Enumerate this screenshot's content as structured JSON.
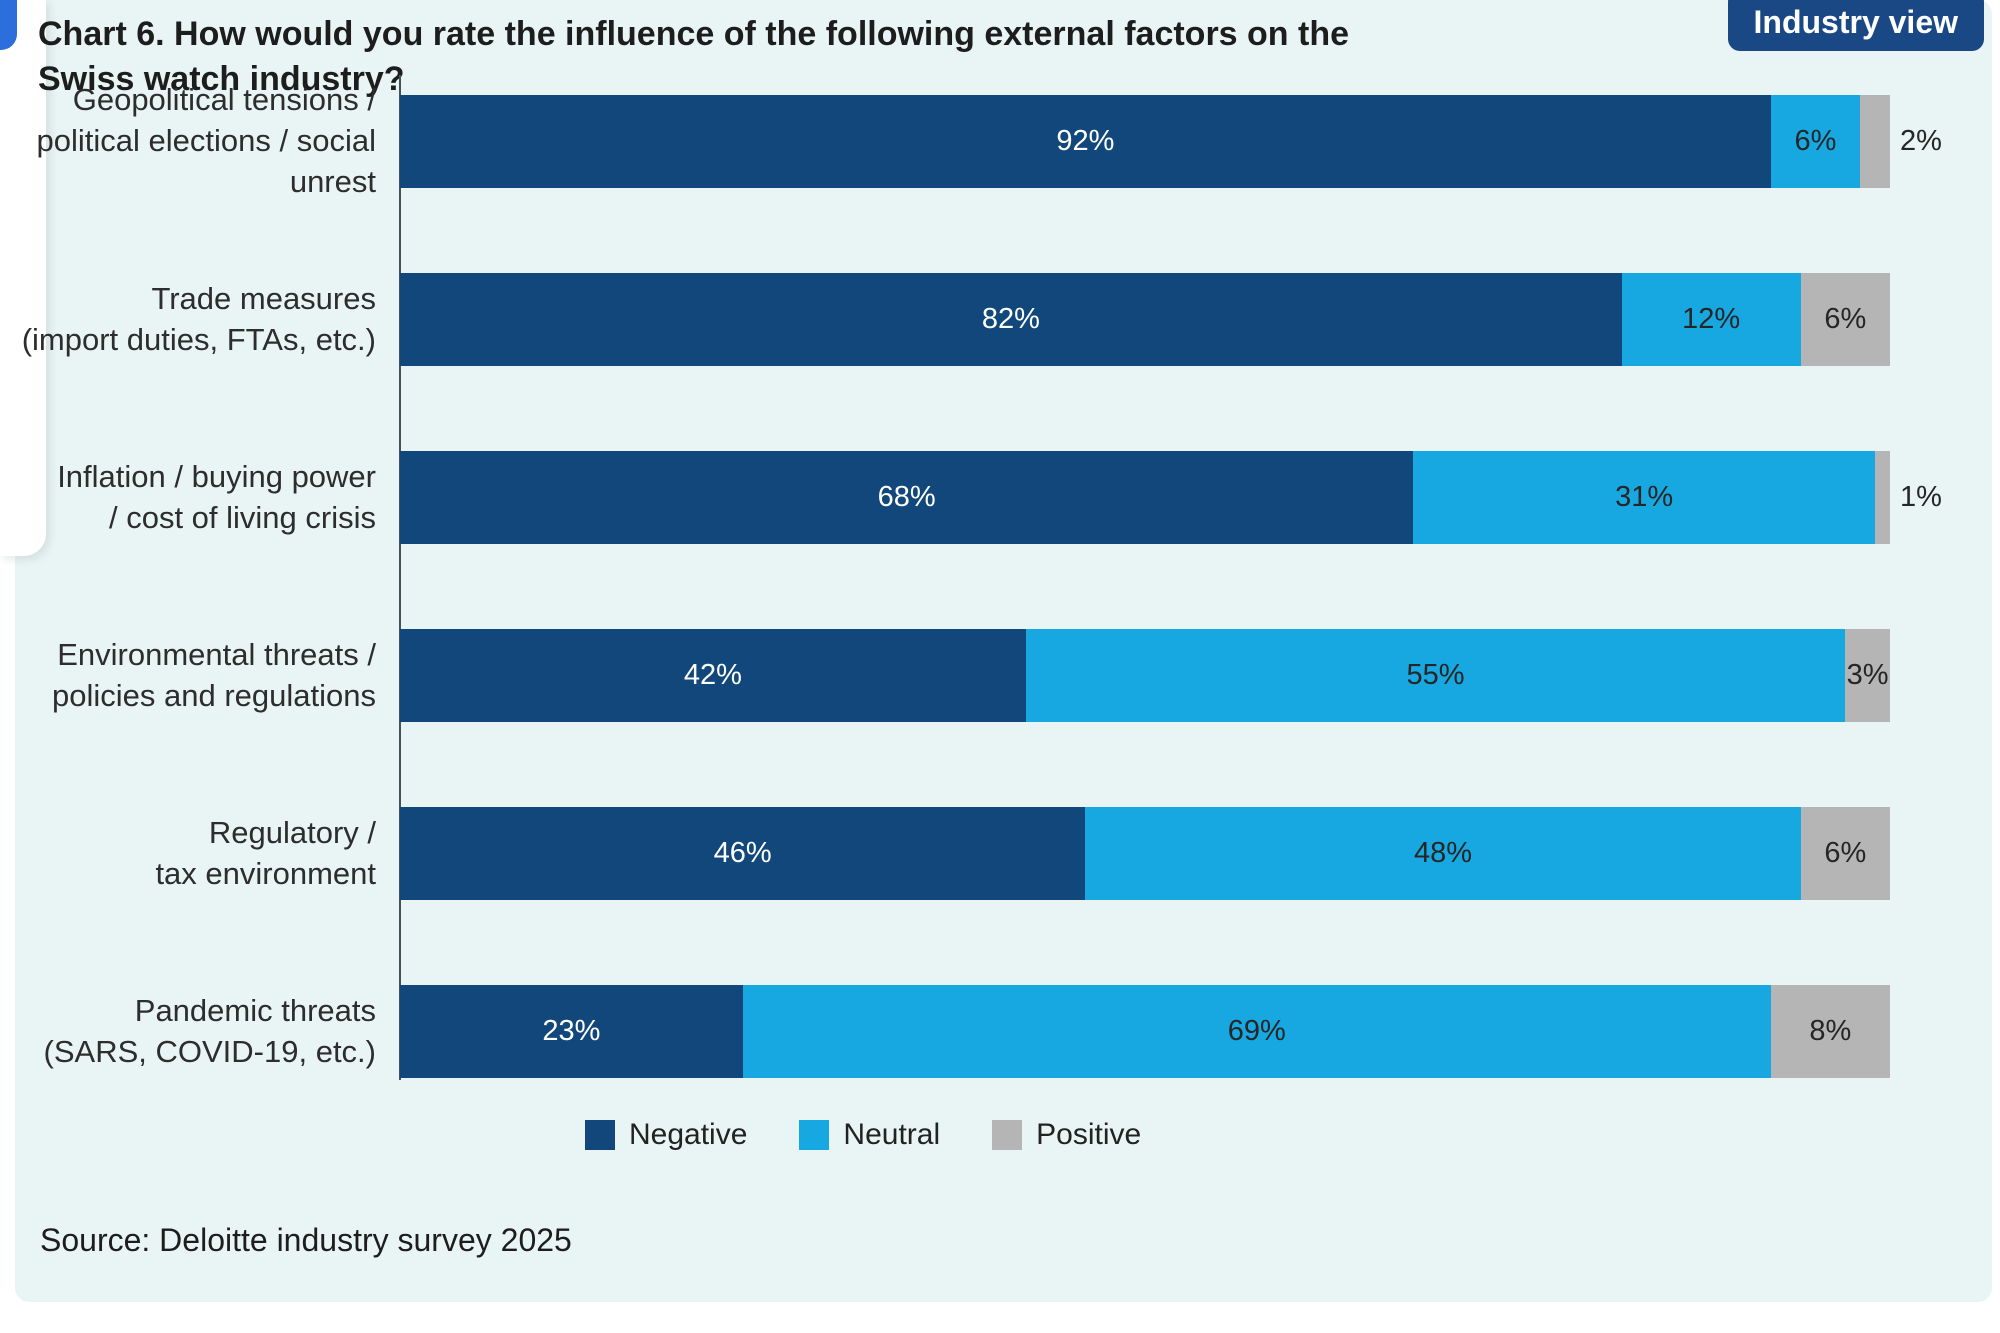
{
  "header": {
    "title": "Chart 6. How would you rate the influence of the following external factors on the\nSwiss watch industry?",
    "badge": "Industry view"
  },
  "footer": {
    "source": "Source: Deloitte industry survey 2025"
  },
  "colors": {
    "panel_bg": "#e9f4f4",
    "negative": "#11477a",
    "neutral": "#18a8e1",
    "positive": "#b5b5b5",
    "badge_bg": "#1a4884",
    "corner_accent": "#2c6edb",
    "axis_line": "#42525b"
  },
  "chart_data": {
    "type": "bar",
    "orientation": "horizontal",
    "stacked": true,
    "unit": "%",
    "xlim": [
      0,
      100
    ],
    "grid": false,
    "legend_position": "bottom",
    "title": "Chart 6. How would you rate the influence of the following external factors on the Swiss watch industry?",
    "categories": [
      "Geopolitical tensions /\npolitical elections / social unrest",
      "Trade measures\n(import duties, FTAs, etc.)",
      "Inflation / buying power\n/ cost of living crisis",
      "Environmental threats /\npolicies and regulations",
      "Regulatory /\ntax environment",
      "Pandemic threats\n(SARS, COVID-19, etc.)"
    ],
    "series": [
      {
        "name": "Negative",
        "color": "#11477a",
        "values": [
          92,
          82,
          68,
          42,
          46,
          23
        ]
      },
      {
        "name": "Neutral",
        "color": "#18a8e1",
        "values": [
          6,
          12,
          31,
          55,
          48,
          69
        ]
      },
      {
        "name": "Positive",
        "color": "#b5b5b5",
        "values": [
          2,
          6,
          1,
          3,
          6,
          8
        ]
      }
    ]
  }
}
